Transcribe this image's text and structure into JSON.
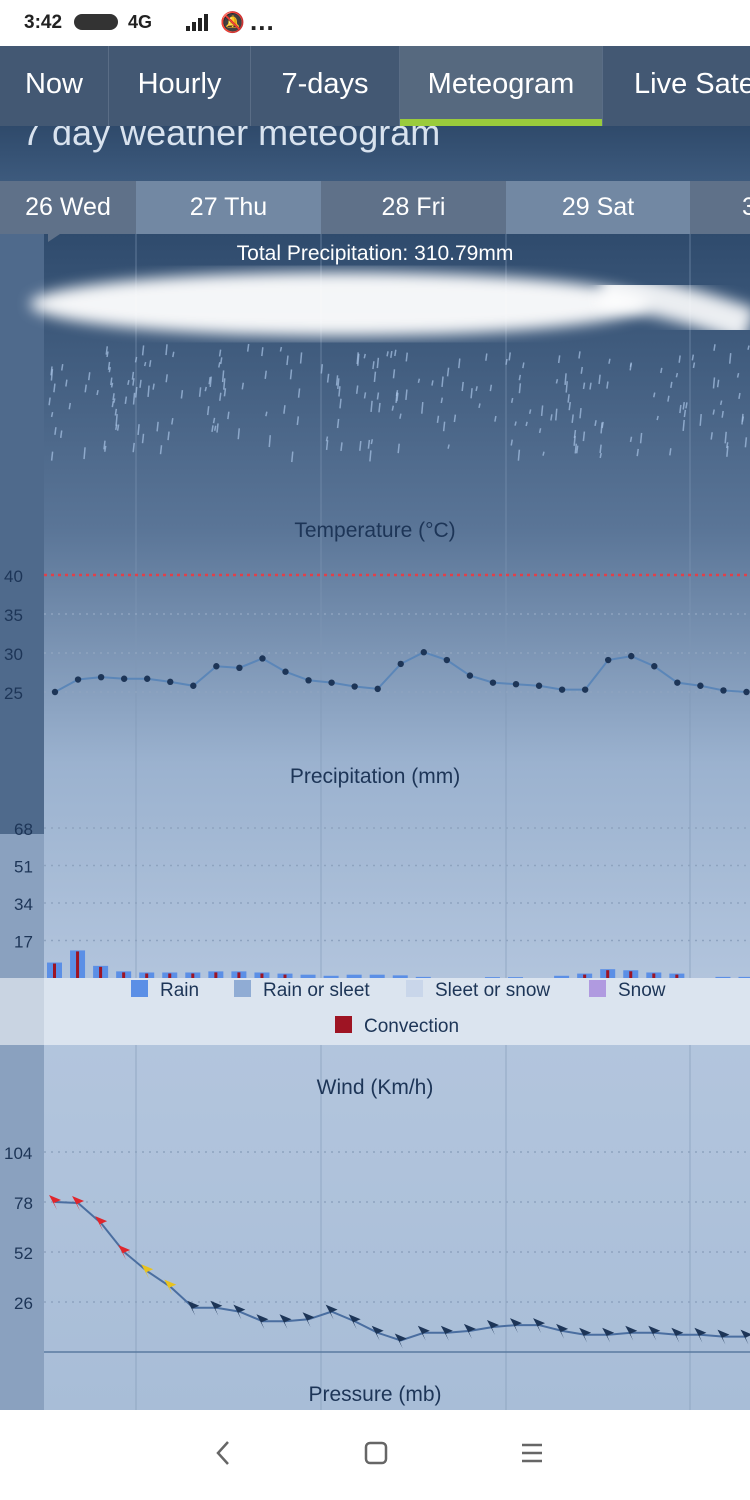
{
  "status_bar": {
    "time": "3:42",
    "network": "4G",
    "more": "..."
  },
  "tabs": [
    {
      "label": "Now"
    },
    {
      "label": "Hourly"
    },
    {
      "label": "7-days"
    },
    {
      "label": "Meteogram",
      "active": true
    },
    {
      "label": "Live Sate"
    }
  ],
  "header": {
    "title": "7 day weather meteogram"
  },
  "days": [
    "26 Wed",
    "27 Thu",
    "28 Fri",
    "29 Sat",
    "3"
  ],
  "meteogram": {
    "total_precipitation": "Total Precipitation: 310.79mm",
    "temperature": {
      "title": "Temperature (°C)",
      "ticks": [
        "40",
        "35",
        "30",
        "25"
      ],
      "threshold_line": 40,
      "values": [
        25,
        26.6,
        26.9,
        26.7,
        26.7,
        26.3,
        25.8,
        28.3,
        28.1,
        29.3,
        27.6,
        26.5,
        26.2,
        25.7,
        25.4,
        28.6,
        30.1,
        29.1,
        27.1,
        26.2,
        26.0,
        25.8,
        25.3,
        25.3,
        29.1,
        29.6,
        28.3,
        26.2,
        25.8,
        25.2,
        25.0
      ],
      "ylim": [
        25,
        40
      ],
      "line_color": "#5b86b8",
      "threshold_color": "#e0404a"
    },
    "precipitation": {
      "title": "Precipitation (mm)",
      "ticks": [
        "68",
        "51",
        "34",
        "17"
      ],
      "ylim": [
        0,
        68
      ],
      "values": [
        7,
        12.5,
        5.5,
        3,
        2.5,
        2.5,
        2.5,
        3,
        3,
        2.5,
        2,
        1.5,
        1,
        1.5,
        1.5,
        1.2,
        0.5,
        0,
        0,
        0.4,
        0.4,
        0,
        1,
        2,
        4,
        3.5,
        2.5,
        2,
        0,
        0.5,
        0.5
      ],
      "rain_color": "#5b8fe6",
      "convection_color": "#9e1423"
    },
    "legend": [
      {
        "label": "Rain",
        "color": "#5b8fe6"
      },
      {
        "label": "Rain or sleet",
        "color": "#90acd4"
      },
      {
        "label": "Sleet or snow",
        "color": "#c9d6ea"
      },
      {
        "label": "Snow",
        "color": "#b09ae0"
      },
      {
        "label": "Convection",
        "color": "#9e1423"
      }
    ],
    "wind": {
      "title": "Wind (Km/h)",
      "ticks": [
        "104",
        "78",
        "52",
        "26"
      ],
      "ylim": [
        0,
        104
      ],
      "values": [
        78,
        77.5,
        67,
        52,
        42,
        34,
        23,
        23,
        21,
        16,
        16,
        17,
        21,
        16,
        10,
        6,
        10,
        10,
        11,
        13,
        14,
        14,
        11,
        9,
        9,
        10,
        10,
        9,
        9,
        8,
        8
      ],
      "colors": [
        "red",
        "red",
        "red",
        "red",
        "yellow",
        "yellow",
        "navy",
        "navy",
        "navy",
        "navy",
        "navy",
        "navy",
        "navy",
        "navy",
        "navy",
        "navy",
        "navy",
        "navy",
        "navy",
        "navy",
        "navy",
        "navy",
        "navy",
        "navy",
        "navy",
        "navy",
        "navy",
        "navy",
        "navy",
        "navy",
        "navy"
      ]
    },
    "pressure": {
      "title": "Pressure (mb)"
    }
  },
  "icons": {
    "back": "back-icon",
    "home": "home-icon",
    "menu": "menu-icon"
  }
}
